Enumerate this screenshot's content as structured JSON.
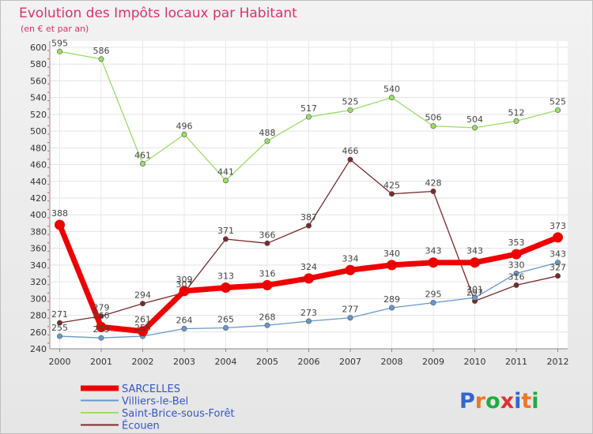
{
  "chart_data": {
    "type": "line",
    "title": "Evolution des Impôts locaux par Habitant",
    "subtitle": "(en € et par an)",
    "xlabel": "",
    "ylabel": "",
    "ylim": [
      240,
      600
    ],
    "y_ticks": [
      240,
      260,
      280,
      300,
      320,
      340,
      360,
      380,
      400,
      420,
      440,
      460,
      480,
      500,
      520,
      540,
      560,
      580,
      600
    ],
    "categories": [
      "2000",
      "2001",
      "2002",
      "2003",
      "2004",
      "2005",
      "2006",
      "2007",
      "2008",
      "2009",
      "2010",
      "2011",
      "2012"
    ],
    "grid": true,
    "legend_position": "bottom-left",
    "series": [
      {
        "name": "SARCELLES",
        "color": "#ee0000",
        "values": [
          388,
          266,
          261,
          309,
          313,
          316,
          324,
          334,
          340,
          343,
          343,
          353,
          373
        ]
      },
      {
        "name": "Villiers-le-Bel",
        "color": "#6699cc",
        "values": [
          255,
          253,
          255,
          264,
          265,
          268,
          273,
          277,
          289,
          295,
          301,
          330,
          343
        ]
      },
      {
        "name": "Saint-Brice-sous-Forêt",
        "color": "#99dd66",
        "values": [
          595,
          586,
          461,
          496,
          441,
          488,
          517,
          525,
          540,
          506,
          504,
          512,
          525
        ]
      },
      {
        "name": "Écouen",
        "color": "#7a2a2a",
        "values": [
          271,
          279,
          294,
          307,
          371,
          366,
          387,
          466,
          425,
          428,
          297,
          316,
          327
        ]
      }
    ]
  },
  "branding": {
    "logo_text": "Proxiti",
    "logo_colors": [
      "#3366cc",
      "#ee7722",
      "#22aa44",
      "#dd3333",
      "#3366cc",
      "#ee7722",
      "#22aa44"
    ]
  }
}
